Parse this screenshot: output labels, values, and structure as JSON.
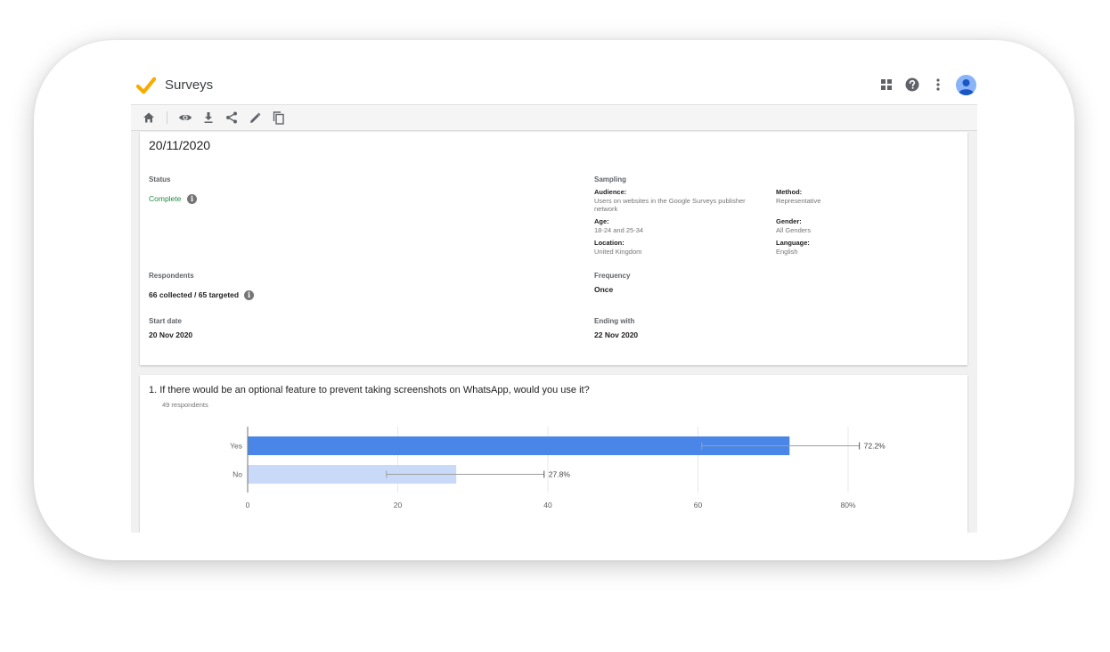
{
  "app": {
    "title": "Surveys",
    "accent_check": "#f9ab00",
    "icons": [
      "apps-grid-icon",
      "help-icon",
      "more-vert-icon",
      "account-avatar"
    ]
  },
  "toolbar": {
    "icons": [
      "home-icon",
      "preview-eye-icon",
      "download-icon",
      "share-icon",
      "edit-pencil-icon",
      "copy-icon"
    ]
  },
  "summary": {
    "date": "20/11/2020",
    "status_label": "Status",
    "status_value": "Complete",
    "status_color": "#1e8e3e",
    "respondents_label": "Respondents",
    "respondents_value": "66 collected / 65 targeted",
    "start_label": "Start date",
    "start_value": "20 Nov 2020",
    "sampling_label": "Sampling",
    "audience_label": "Audience:",
    "audience_value": "Users on websites in the Google Surveys publisher network",
    "method_label": "Method:",
    "method_value": "Representative",
    "age_label": "Age:",
    "age_value": "18-24 and 25-34",
    "gender_label": "Gender:",
    "gender_value": "All Genders",
    "location_label": "Location:",
    "location_value": "United Kingdom",
    "language_label": "Language:",
    "language_value": "English",
    "frequency_label": "Frequency",
    "frequency_value": "Once",
    "ending_label": "Ending with",
    "ending_value": "22 Nov 2020",
    "info_glyph": "i"
  },
  "question": {
    "title": "1.  If there would be an optional feature to prevent taking screenshots on WhatsApp, would you use it?",
    "respondents": "49 respondents"
  },
  "chart_data": {
    "type": "bar",
    "orientation": "horizontal",
    "categories": [
      "Yes",
      "No"
    ],
    "values": [
      72.2,
      27.8
    ],
    "value_labels": [
      "72.2%",
      "27.8%"
    ],
    "error_bars": [
      [
        60.5,
        81.5
      ],
      [
        18.5,
        39.5
      ]
    ],
    "colors": [
      "#4a86e8",
      "#c9daf8"
    ],
    "x_ticks": [
      0,
      20,
      40,
      60,
      80
    ],
    "x_tick_labels": [
      "0",
      "20",
      "40",
      "60",
      "80%"
    ],
    "xlim": [
      0,
      80
    ],
    "grid": true
  }
}
